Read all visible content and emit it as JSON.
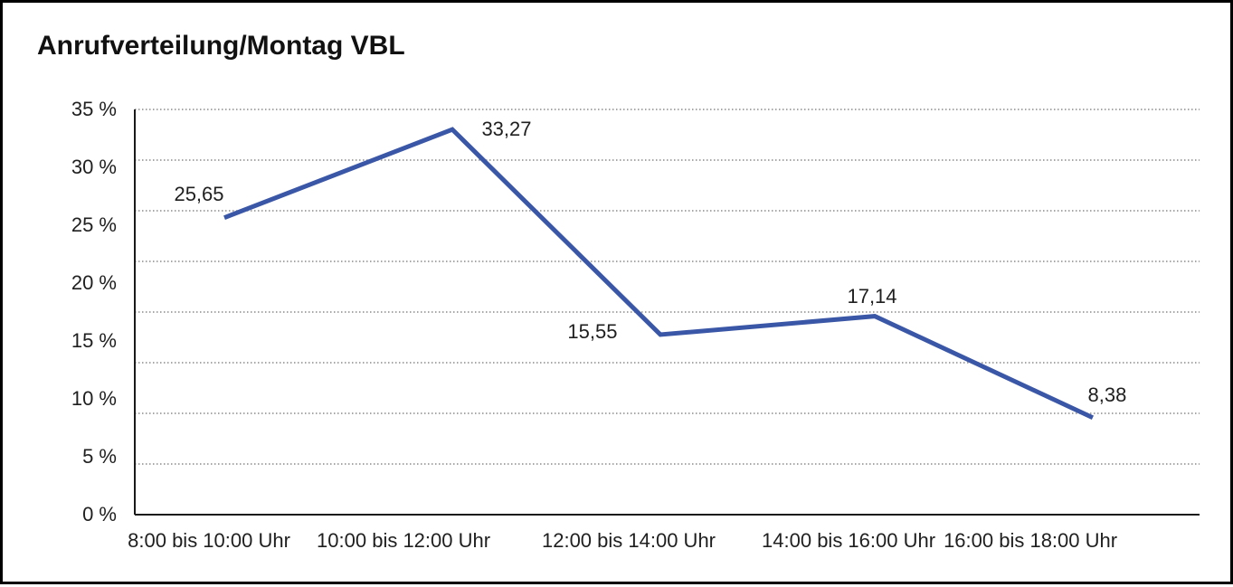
{
  "title": "Anrufverteilung/Montag VBL",
  "chart_data": {
    "type": "line",
    "title": "Anrufverteilung/Montag VBL",
    "categories": [
      "8:00 bis 10:00 Uhr",
      "10:00 bis 12:00 Uhr",
      "12:00 bis 14:00 Uhr",
      "14:00 bis 16:00 Uhr",
      "16:00 bis 18:00 Uhr"
    ],
    "values": [
      25.65,
      33.27,
      15.55,
      17.14,
      8.38
    ],
    "value_labels": [
      "25,65",
      "33,27",
      "15,55",
      "17,14",
      "8,38"
    ],
    "y_tick_labels": [
      "35 %",
      "30 %",
      "25 %",
      "20 %",
      "15 %",
      "10 %",
      "5 %",
      "0 %"
    ],
    "ylim": [
      0,
      35
    ],
    "xlabel": "",
    "ylabel": "",
    "legend": "none",
    "grid": "dotted-horizontal",
    "line_color": "#3A56A6",
    "axis_color": "#1a1a1a",
    "grid_color": "#8a8a8a"
  }
}
